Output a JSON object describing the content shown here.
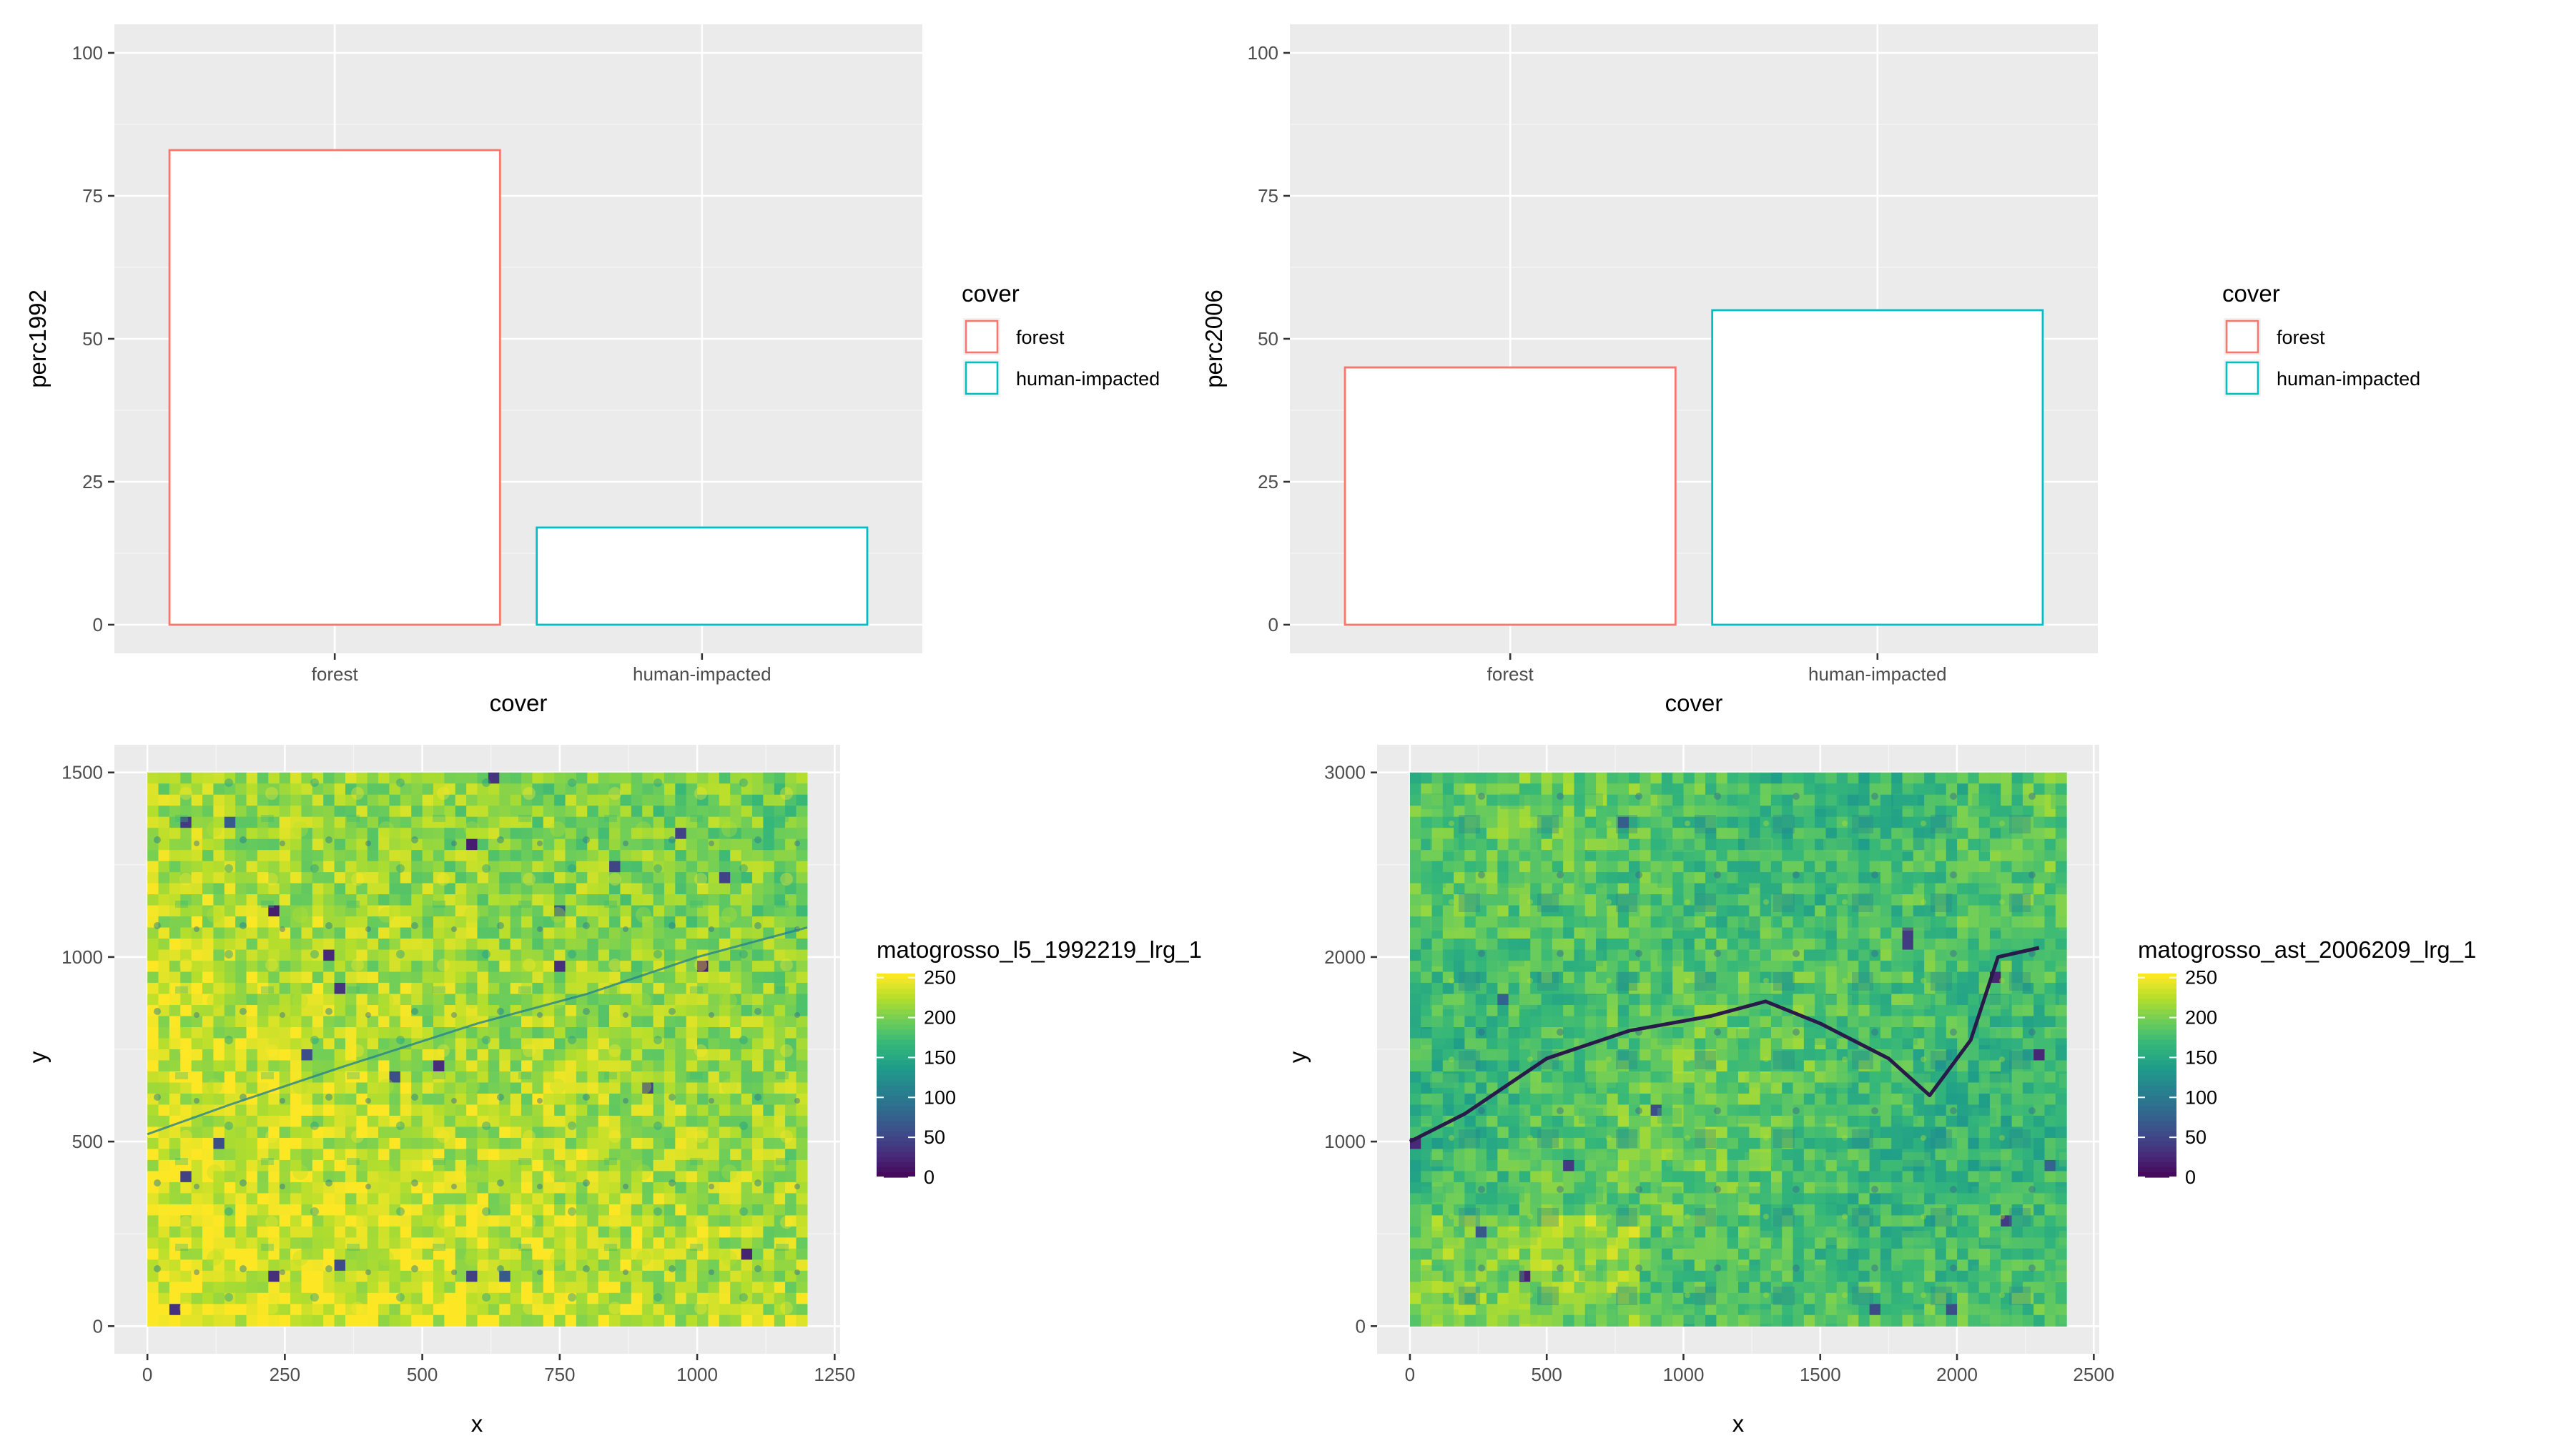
{
  "colors": {
    "forest": "#F8766D",
    "human_impacted": "#00BFC4",
    "panel_background": "#EBEBEB",
    "viridis": [
      "#440154",
      "#482878",
      "#3E4A89",
      "#31688E",
      "#26828E",
      "#1F9E89",
      "#35B779",
      "#6DCD59",
      "#B4DE2C",
      "#FDE725"
    ]
  },
  "chart_data": [
    {
      "type": "bar",
      "categories": [
        "forest",
        "human-impacted"
      ],
      "values": [
        83,
        17
      ],
      "xlabel": "cover",
      "ylabel": "perc1992",
      "ylim": [
        0,
        100
      ],
      "yticks": [
        "0",
        "25",
        "50",
        "75",
        "100"
      ],
      "bar_fill": "#FFFFFF",
      "legend": {
        "title": "cover",
        "position": "right",
        "entries": [
          "forest",
          "human-impacted"
        ]
      },
      "grid": true
    },
    {
      "type": "bar",
      "categories": [
        "forest",
        "human-impacted"
      ],
      "values": [
        45,
        55
      ],
      "xlabel": "cover",
      "ylabel": "perc2006",
      "ylim": [
        0,
        100
      ],
      "yticks": [
        "0",
        "25",
        "50",
        "75",
        "100"
      ],
      "bar_fill": "#FFFFFF",
      "legend": {
        "title": "cover",
        "position": "right",
        "entries": [
          "forest",
          "human-impacted"
        ]
      },
      "grid": true
    },
    {
      "type": "heatmap",
      "xlabel": "x",
      "ylabel": "y",
      "xlim": [
        0,
        1200
      ],
      "ylim": [
        0,
        1500
      ],
      "xticks": [
        "0",
        "250",
        "500",
        "750",
        "1000",
        "1250"
      ],
      "yticks": [
        "0",
        "500",
        "1000",
        "1500"
      ],
      "colorbar": {
        "title": "matogrosso_l5_1992219_lrg_1",
        "ticks": [
          "0",
          "50",
          "100",
          "150",
          "200",
          "250"
        ],
        "range": [
          0,
          250
        ],
        "position": "right"
      },
      "dominant_value_range": [
        150,
        245
      ],
      "grid": true
    },
    {
      "type": "heatmap",
      "xlabel": "x",
      "ylabel": "y",
      "xlim": [
        0,
        2400
      ],
      "ylim": [
        0,
        3000
      ],
      "xticks": [
        "0",
        "500",
        "1000",
        "1500",
        "2000",
        "2500"
      ],
      "yticks": [
        "0",
        "1000",
        "2000",
        "3000"
      ],
      "colorbar": {
        "title": "matogrosso_ast_2006209_lrg_1",
        "ticks": [
          "0",
          "50",
          "100",
          "150",
          "200",
          "250"
        ],
        "range": [
          0,
          250
        ],
        "position": "right"
      },
      "dominant_value_range": [
        140,
        225
      ],
      "grid": true
    }
  ]
}
